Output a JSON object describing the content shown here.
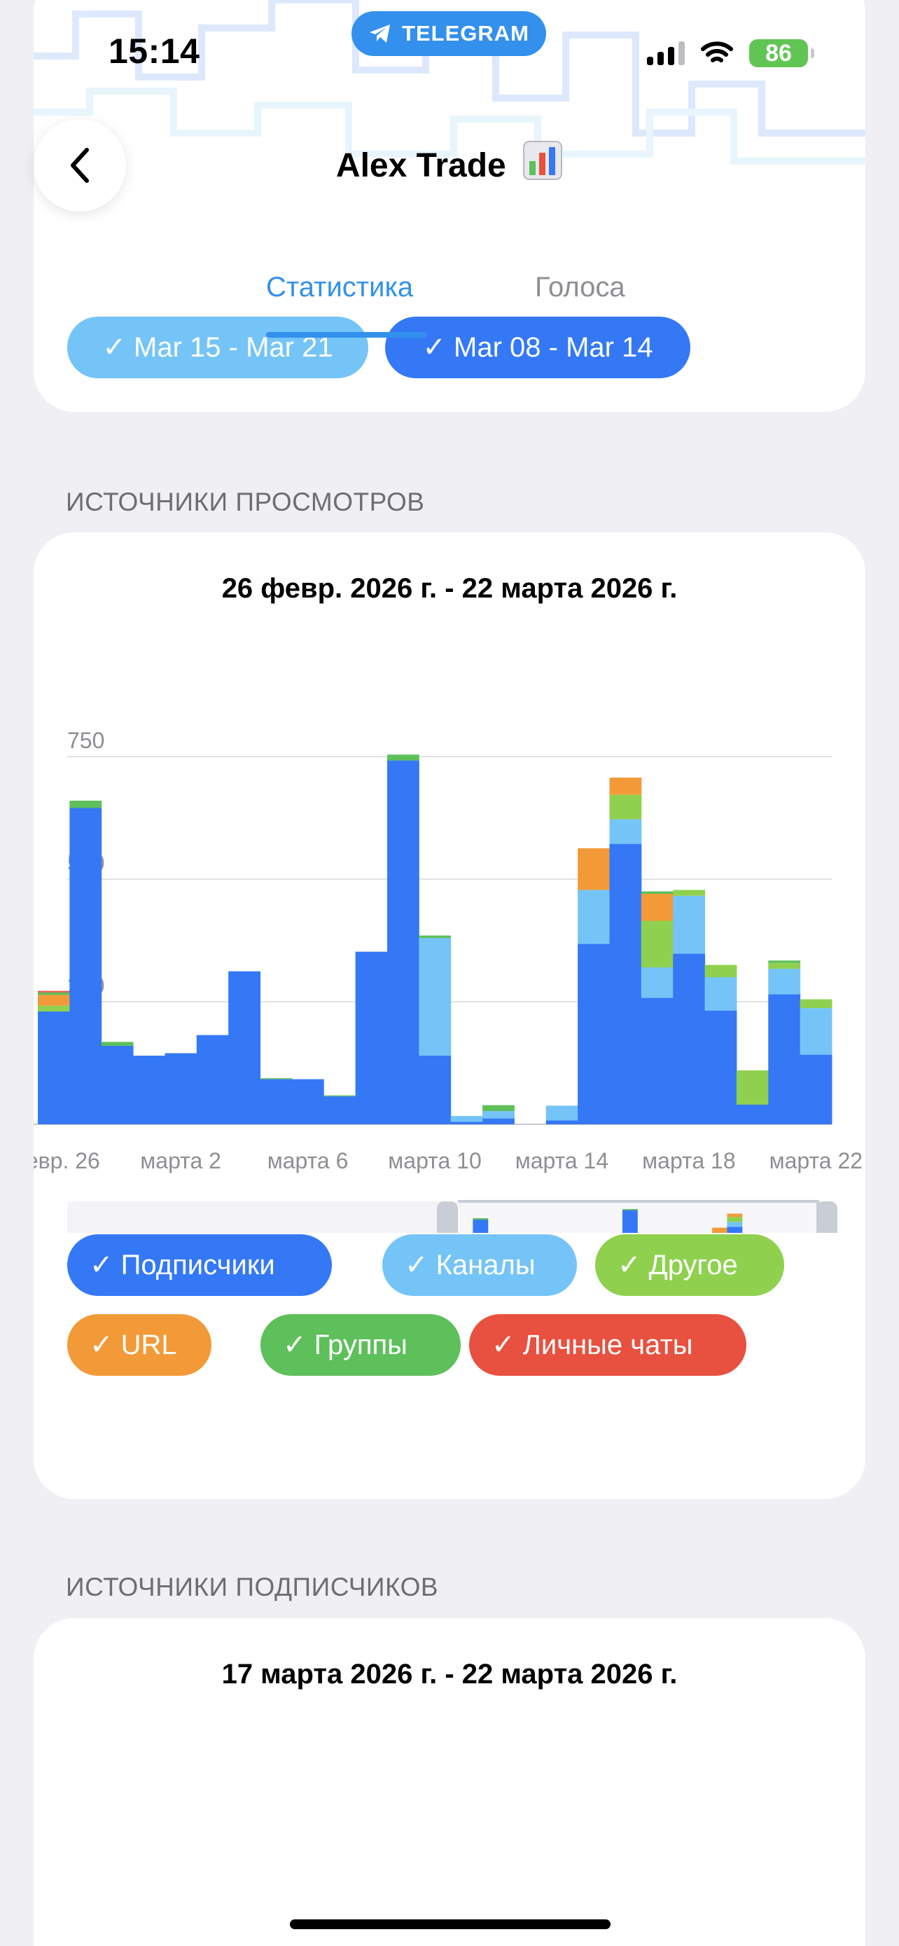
{
  "status_bar": {
    "time": "15:14",
    "pill": "TELEGRAM",
    "battery": "86"
  },
  "header": {
    "title": "Alex Trade"
  },
  "tabs": [
    {
      "label": "Статистика"
    },
    {
      "label": "Голоса"
    }
  ],
  "week_chips": [
    {
      "label": "✓ Mar 15 - Mar 21"
    },
    {
      "label": "✓ Mar 08 - Mar 14"
    }
  ],
  "views_section": {
    "label": "ИСТОЧНИКИ ПРОСМОТРОВ",
    "range": "26 февр. 2026 г. - 22 марта 2026 г."
  },
  "followers_section": {
    "label": "ИСТОЧНИКИ ПОДПИСЧИКОВ",
    "range": "17 марта 2026 г. - 22 марта 2026 г."
  },
  "legend": [
    {
      "label": "✓ Подписчики",
      "color": "#3478f6"
    },
    {
      "label": "✓ Каналы",
      "color": "#75c4f8"
    },
    {
      "label": "✓ Другое",
      "color": "#8fd14f"
    },
    {
      "label": "✓ URL",
      "color": "#f29a38"
    },
    {
      "label": "✓ Группы",
      "color": "#5ec05b"
    },
    {
      "label": "✓ Личные чаты",
      "color": "#e8503f"
    }
  ],
  "chart_data": {
    "type": "bar",
    "stacked": true,
    "y_ticks": [
      "0",
      "250",
      "500",
      "750"
    ],
    "ylim": [
      0,
      750
    ],
    "x_ticks": [
      "февр. 26",
      "марта 2",
      "марта 6",
      "марта 10",
      "марта 14",
      "марта 18",
      "марта 22"
    ],
    "categories": [
      "26 февр.",
      "27 февр.",
      "28 февр.",
      "1 марта",
      "2 марта",
      "3 марта",
      "4 марта",
      "5 марта",
      "6 марта",
      "7 марта",
      "8 марта",
      "9 марта",
      "10 марта",
      "11 марта",
      "12 марта",
      "13 марта",
      "14 марта",
      "15 марта",
      "16 марта",
      "17 марта",
      "18 марта",
      "19 марта",
      "20 марта",
      "21 марта",
      "22 марта"
    ],
    "series": [
      {
        "name": "Подписчики",
        "color": "#3478f6",
        "values": [
          230,
          645,
          160,
          140,
          145,
          182,
          312,
          92,
          92,
          57,
          352,
          742,
          140,
          5,
          12,
          0,
          8,
          368,
          572,
          258,
          348,
          232,
          40,
          265,
          142
        ]
      },
      {
        "name": "Каналы",
        "color": "#75c4f8",
        "values": [
          0,
          0,
          0,
          0,
          0,
          0,
          0,
          0,
          0,
          0,
          0,
          0,
          240,
          12,
          15,
          0,
          30,
          110,
          50,
          62,
          118,
          68,
          0,
          52,
          95
        ]
      },
      {
        "name": "Другое",
        "color": "#8fd14f",
        "values": [
          12,
          0,
          0,
          0,
          0,
          0,
          0,
          0,
          0,
          0,
          0,
          0,
          0,
          0,
          0,
          0,
          0,
          0,
          50,
          95,
          12,
          25,
          70,
          12,
          18
        ]
      },
      {
        "name": "URL",
        "color": "#f29a38",
        "values": [
          22,
          0,
          0,
          0,
          0,
          0,
          0,
          0,
          0,
          0,
          0,
          0,
          0,
          0,
          0,
          0,
          0,
          85,
          35,
          55,
          0,
          0,
          0,
          0,
          0
        ]
      },
      {
        "name": "Группы",
        "color": "#5ec05b",
        "values": [
          5,
          15,
          8,
          0,
          0,
          0,
          0,
          2,
          0,
          2,
          0,
          12,
          5,
          0,
          12,
          0,
          0,
          0,
          0,
          5,
          0,
          0,
          0,
          5,
          0
        ]
      },
      {
        "name": "Личные чаты",
        "color": "#e8503f",
        "values": [
          3,
          0,
          0,
          0,
          0,
          0,
          0,
          0,
          0,
          0,
          0,
          0,
          0,
          0,
          0,
          0,
          0,
          0,
          0,
          0,
          0,
          0,
          0,
          0,
          0
        ]
      }
    ]
  }
}
